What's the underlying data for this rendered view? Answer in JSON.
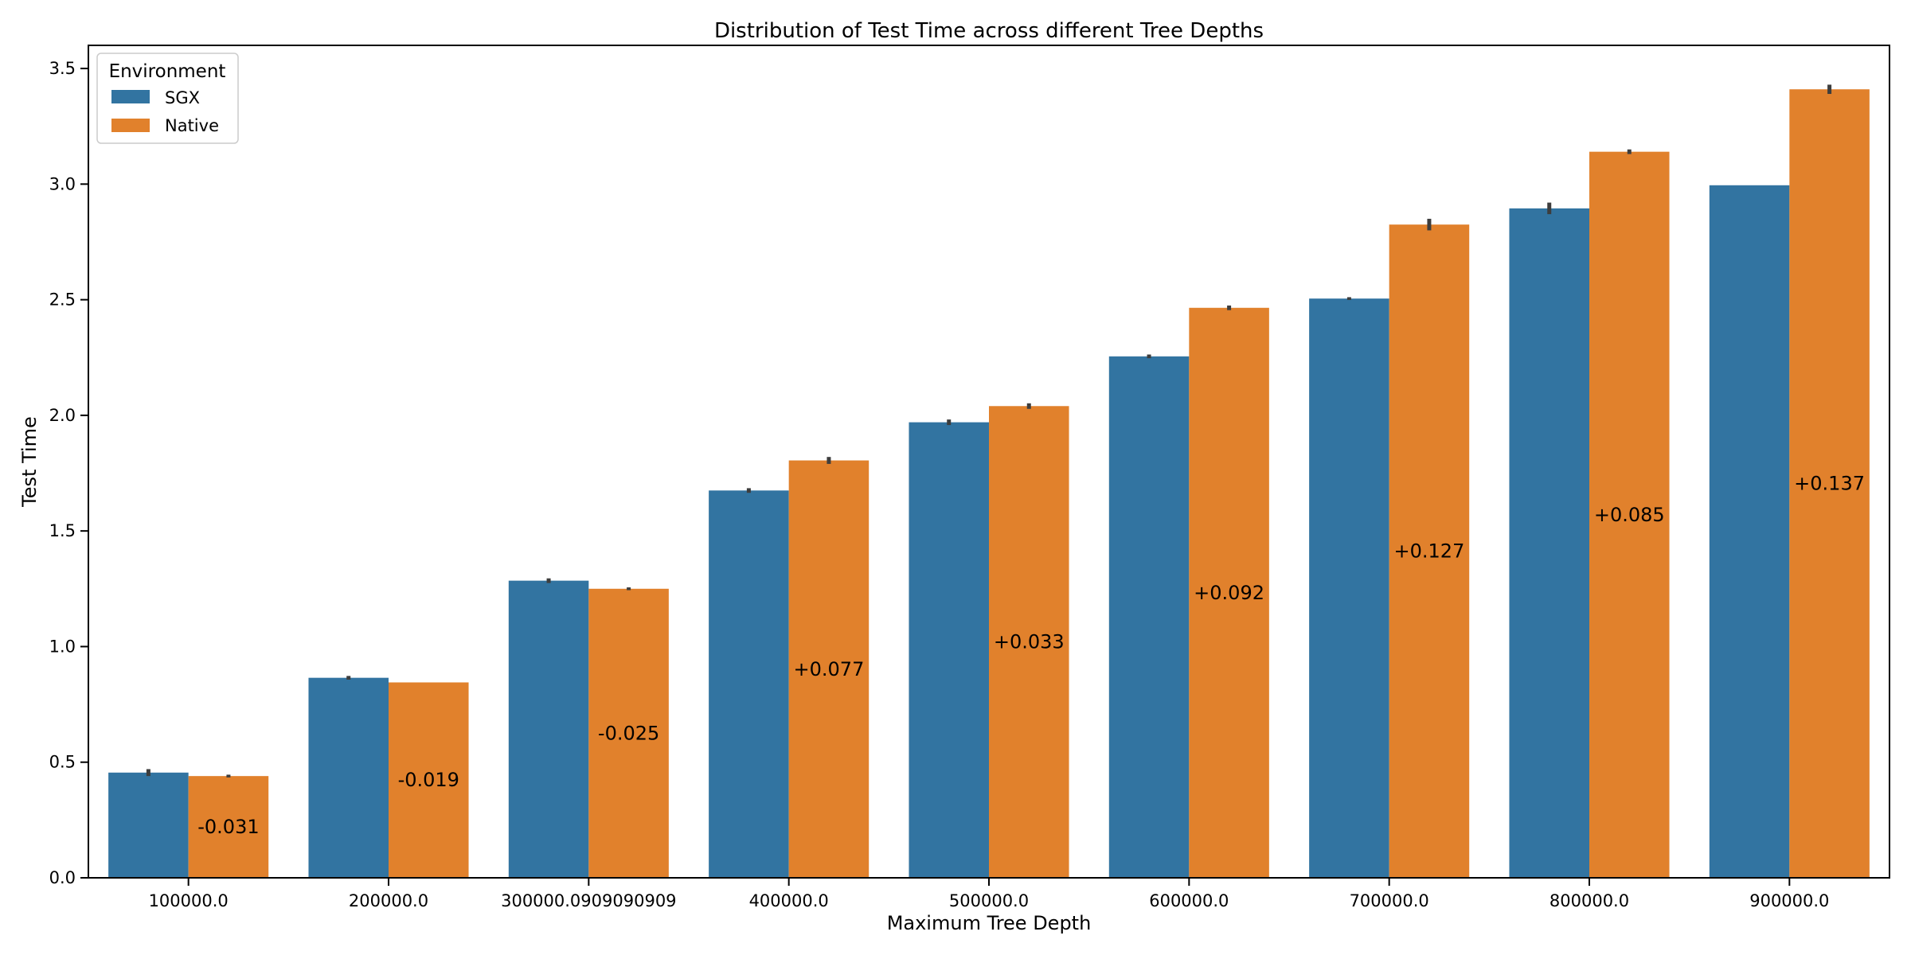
{
  "chart_data": {
    "type": "bar",
    "title": "Distribution of Test Time  across different Tree Depths",
    "xlabel": "Maximum Tree Depth",
    "ylabel": "Test Time",
    "ylim": [
      0,
      3.6
    ],
    "yticks": [
      "0.0",
      "0.5",
      "1.0",
      "1.5",
      "2.0",
      "2.5",
      "3.0",
      "3.5"
    ],
    "categories": [
      "100000.0",
      "200000.0",
      "300000.0909090909",
      "400000.0",
      "500000.0",
      "600000.0",
      "700000.0",
      "800000.0",
      "900000.0"
    ],
    "legend": {
      "title": "Environment",
      "placement": "top-left"
    },
    "series": [
      {
        "name": "SGX",
        "color": "#3274a1",
        "values": [
          0.455,
          0.865,
          1.285,
          1.675,
          1.97,
          2.255,
          2.505,
          2.895,
          2.995
        ],
        "errors": [
          0.015,
          0.008,
          0.01,
          0.01,
          0.012,
          0.008,
          0.006,
          0.025,
          0.0
        ]
      },
      {
        "name": "Native",
        "color": "#e1812c",
        "values": [
          0.44,
          0.845,
          1.25,
          1.805,
          2.04,
          2.465,
          2.825,
          3.14,
          3.41
        ],
        "errors": [
          0.006,
          0.0,
          0.006,
          0.015,
          0.012,
          0.01,
          0.025,
          0.01,
          0.02
        ]
      }
    ],
    "annotations": [
      "-0.031",
      "-0.019",
      "-0.025",
      "+0.077",
      "+0.033",
      "+0.092",
      "+0.127",
      "+0.085",
      "+0.137"
    ],
    "grid": false
  }
}
